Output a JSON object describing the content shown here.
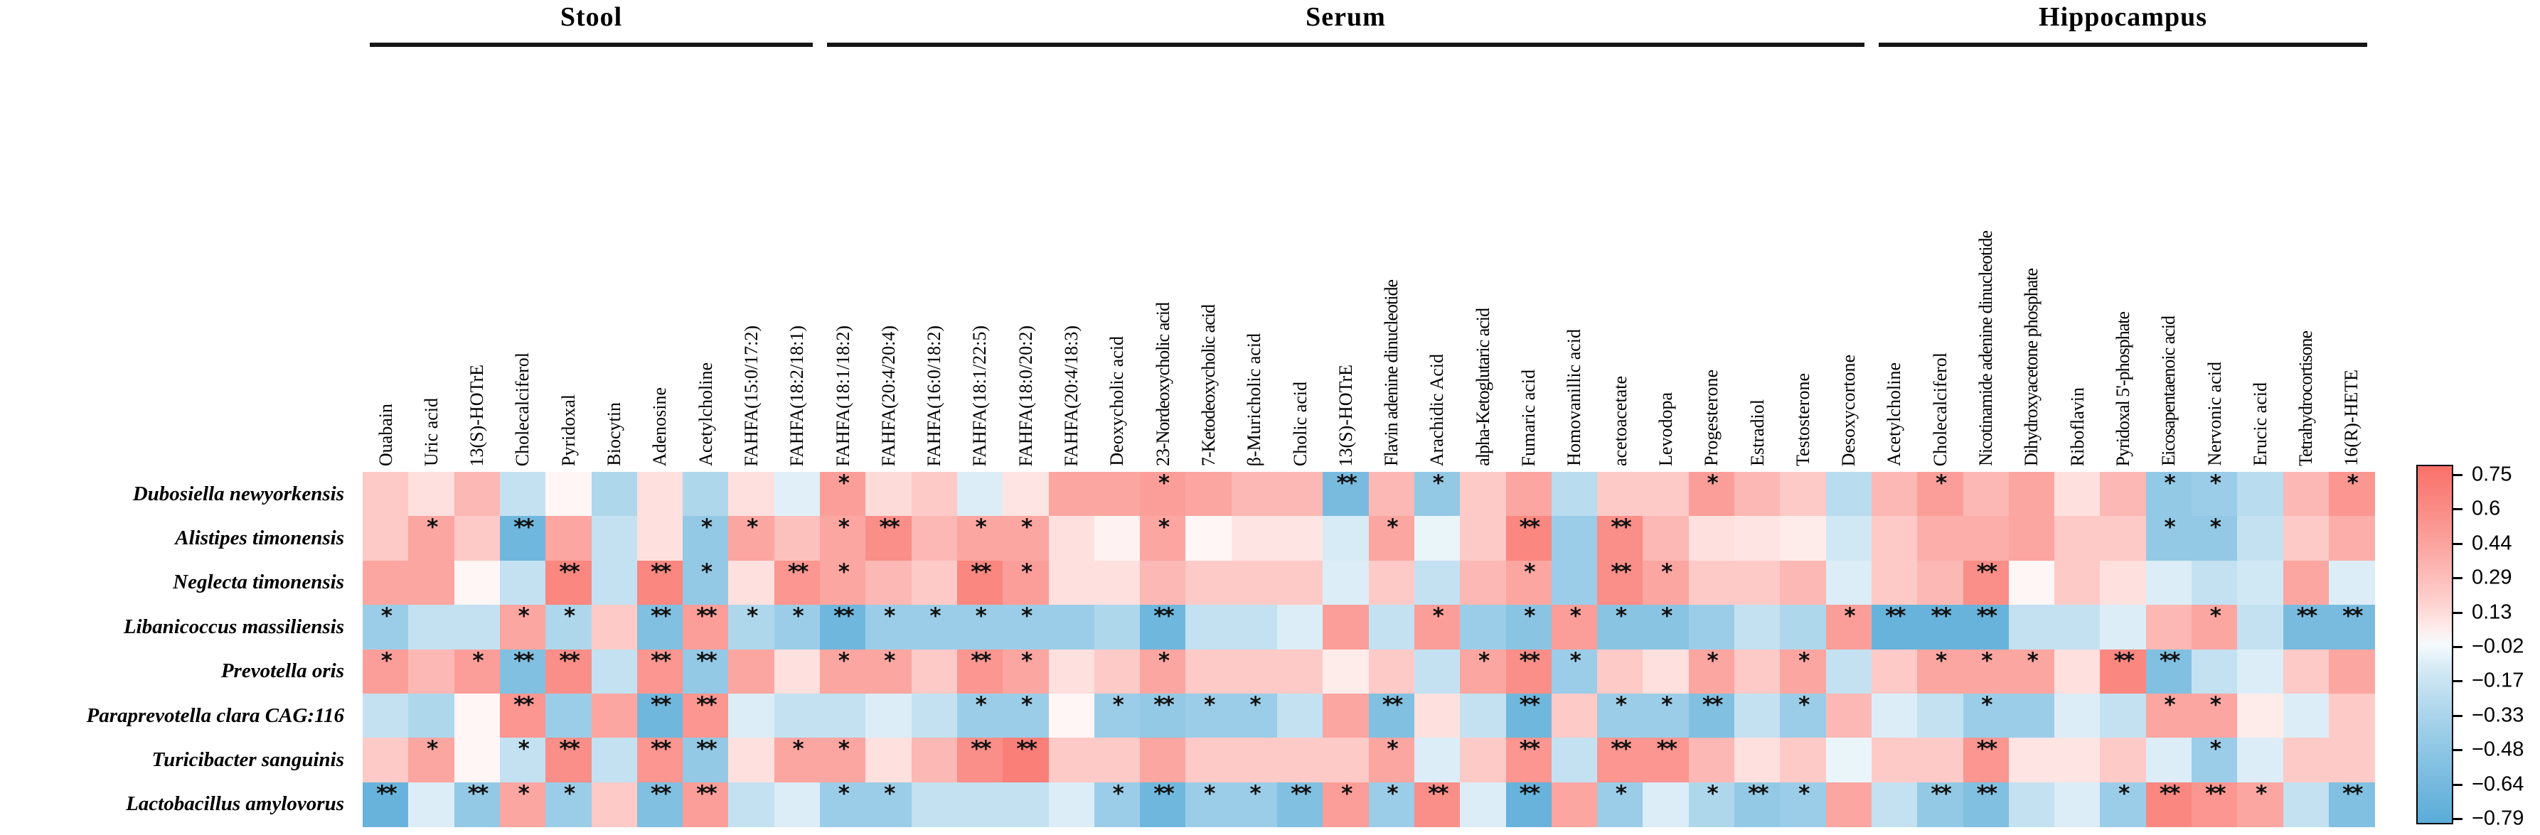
{
  "chart_data": {
    "type": "heatmap",
    "title": "",
    "column_groups": [
      {
        "label": "Stool",
        "start": 0,
        "count": 10
      },
      {
        "label": "Serum",
        "start": 10,
        "count": 23
      },
      {
        "label": "Hippocampus",
        "start": 33,
        "count": 11
      }
    ],
    "columns": [
      "Ouabain",
      "Uric acid",
      "13(S)-HOTrE",
      "Cholecalciferol",
      "Pyridoxal",
      "Biocytin",
      "Adenosine",
      "Acetylcholine",
      "FAHFA(15:0/17:2)",
      "FAHFA(18:2/18:1)",
      "FAHFA(18:1/18:2)",
      "FAHFA(20:4/20:4)",
      "FAHFA(16:0/18:2)",
      "FAHFA(18:1/22:5)",
      "FAHFA(18:0/20:2)",
      "FAHFA(20:4/18:3)",
      "Deoxycholic acid",
      "23-Nordeoxycholic acid",
      "7-Ketodeoxycholic acid",
      "β-Muricholic acid",
      "Cholic acid",
      "13(S)-HOTrE",
      "Flavin adenine dinucleotide",
      "Arachidic Acid",
      "alpha-Ketoglutaric acid",
      "Fumaric acid",
      "Homovanillic acid",
      "acetoacetate",
      "Levodopa",
      "Progesterone",
      "Estradiol",
      "Testosterone",
      "Desoxycortone",
      "Acetylcholine",
      "Cholecalciferol",
      "Nicotinamide adenine dinucleotide",
      "Dihydroxyacetone phosphate",
      "Riboflavin",
      "Pyridoxal 5'-phosphate",
      "Eicosapentaenoic acid",
      "Nervonic acid",
      "Erucic acid",
      "Tetrahydrocortisone",
      "16(R)-HETE"
    ],
    "rows": [
      "Dubosiella newyorkensis",
      "Alistipes timonensis",
      "Neglecta timonensis",
      "Libanicoccus massiliensis",
      "Prevotella oris",
      "Paraprevotella clara CAG:116",
      "Turicibacter sanguinis",
      "Lactobacillus amylovorus"
    ],
    "values": [
      [
        0.2,
        0.1,
        0.3,
        -0.2,
        0.02,
        -0.3,
        0.1,
        -0.3,
        0.1,
        -0.08,
        0.45,
        0.12,
        0.2,
        -0.1,
        0.08,
        0.4,
        0.4,
        0.45,
        0.4,
        0.3,
        0.3,
        -0.6,
        0.3,
        -0.45,
        0.2,
        0.4,
        -0.25,
        0.2,
        0.2,
        0.45,
        0.3,
        0.2,
        -0.25,
        0.3,
        0.45,
        0.3,
        0.4,
        0.1,
        0.3,
        -0.45,
        -0.4,
        -0.25,
        0.3,
        0.5
      ],
      [
        0.2,
        0.4,
        0.2,
        -0.65,
        0.4,
        -0.2,
        0.1,
        -0.45,
        0.4,
        0.25,
        0.4,
        0.55,
        0.3,
        0.4,
        0.4,
        0.1,
        0.03,
        0.4,
        0.02,
        0.08,
        0.08,
        -0.12,
        0.4,
        -0.05,
        0.2,
        0.6,
        -0.4,
        0.55,
        0.3,
        0.1,
        0.08,
        0.05,
        -0.15,
        0.2,
        0.35,
        0.35,
        0.4,
        0.2,
        0.2,
        -0.45,
        -0.45,
        -0.2,
        0.2,
        0.35
      ],
      [
        0.4,
        0.4,
        0.02,
        -0.2,
        0.6,
        -0.2,
        0.6,
        -0.45,
        0.1,
        0.5,
        0.4,
        0.3,
        0.2,
        0.6,
        0.45,
        0.1,
        0.1,
        0.3,
        0.2,
        0.2,
        0.2,
        -0.1,
        0.2,
        -0.2,
        0.3,
        0.4,
        -0.4,
        0.55,
        0.4,
        0.2,
        0.2,
        0.3,
        -0.1,
        0.2,
        0.3,
        0.55,
        0.02,
        0.2,
        0.1,
        -0.1,
        -0.2,
        -0.15,
        0.4,
        -0.1
      ],
      [
        -0.4,
        -0.2,
        -0.2,
        0.4,
        -0.3,
        0.2,
        -0.55,
        0.45,
        -0.3,
        -0.4,
        -0.65,
        -0.4,
        -0.4,
        -0.4,
        -0.4,
        -0.4,
        -0.3,
        -0.65,
        -0.2,
        -0.2,
        -0.1,
        0.45,
        -0.2,
        0.45,
        -0.4,
        -0.5,
        0.45,
        -0.5,
        -0.5,
        -0.4,
        -0.2,
        -0.3,
        0.45,
        -0.7,
        -0.7,
        -0.7,
        -0.2,
        -0.2,
        -0.1,
        0.3,
        0.4,
        -0.2,
        -0.6,
        -0.6
      ],
      [
        0.45,
        0.3,
        0.45,
        -0.55,
        0.55,
        -0.2,
        0.5,
        -0.45,
        0.4,
        0.1,
        0.4,
        0.4,
        0.2,
        0.5,
        0.4,
        0.1,
        0.2,
        0.4,
        0.2,
        0.2,
        0.2,
        0.05,
        0.2,
        -0.2,
        0.4,
        0.55,
        -0.4,
        0.2,
        0.1,
        0.4,
        0.2,
        0.4,
        -0.2,
        0.2,
        0.4,
        0.4,
        0.4,
        0.1,
        0.6,
        -0.55,
        -0.2,
        -0.1,
        0.2,
        0.4
      ],
      [
        -0.2,
        -0.3,
        0.02,
        0.5,
        -0.4,
        0.4,
        -0.65,
        0.5,
        -0.1,
        -0.2,
        -0.2,
        -0.1,
        -0.2,
        -0.4,
        -0.4,
        0.02,
        -0.4,
        -0.45,
        -0.4,
        -0.4,
        -0.2,
        0.4,
        -0.55,
        0.1,
        -0.2,
        -0.65,
        0.2,
        -0.4,
        -0.4,
        -0.55,
        -0.2,
        -0.4,
        0.3,
        -0.1,
        -0.2,
        -0.4,
        -0.4,
        -0.1,
        -0.2,
        0.4,
        0.4,
        0.05,
        -0.1,
        0.2
      ],
      [
        0.2,
        0.4,
        0.02,
        -0.2,
        0.55,
        -0.2,
        0.5,
        -0.45,
        0.1,
        0.4,
        0.4,
        0.1,
        0.3,
        0.55,
        0.65,
        0.2,
        0.2,
        0.4,
        0.2,
        0.2,
        0.2,
        0.2,
        0.4,
        -0.1,
        0.2,
        0.5,
        -0.2,
        0.5,
        0.5,
        0.3,
        0.1,
        0.2,
        -0.05,
        0.2,
        0.2,
        0.5,
        0.08,
        0.08,
        0.2,
        -0.1,
        -0.4,
        -0.1,
        0.2,
        0.2
      ],
      [
        -0.7,
        -0.1,
        -0.45,
        0.4,
        -0.4,
        0.2,
        -0.55,
        0.45,
        -0.2,
        -0.1,
        -0.4,
        -0.4,
        -0.2,
        -0.2,
        -0.2,
        -0.1,
        -0.4,
        -0.65,
        -0.4,
        -0.4,
        -0.55,
        0.45,
        -0.4,
        0.55,
        -0.1,
        -0.7,
        0.4,
        -0.4,
        -0.1,
        -0.3,
        -0.45,
        -0.4,
        0.4,
        -0.2,
        -0.45,
        -0.55,
        -0.2,
        -0.1,
        -0.4,
        0.6,
        0.5,
        0.4,
        -0.2,
        -0.55
      ]
    ],
    "significance": [
      [
        "",
        "",
        "",
        "",
        "",
        "",
        "",
        "",
        "",
        "",
        "*",
        "",
        "",
        "",
        "",
        "",
        "",
        "*",
        "",
        "",
        "",
        "**",
        "",
        "*",
        "",
        "",
        "",
        "",
        "",
        "*",
        "",
        "",
        "",
        "",
        "*",
        "",
        "",
        "",
        "",
        "*",
        "*",
        "",
        "",
        "*"
      ],
      [
        "",
        "*",
        "",
        "**",
        "",
        "",
        "",
        "*",
        "*",
        "",
        "*",
        "**",
        "",
        "*",
        "*",
        "",
        "",
        "*",
        "",
        "",
        "",
        "",
        "*",
        "",
        "",
        "**",
        "",
        "**",
        "",
        "",
        "",
        "",
        "",
        "",
        "",
        "",
        "",
        "",
        "",
        "*",
        "*",
        "",
        "",
        ""
      ],
      [
        "",
        "",
        "",
        "",
        "**",
        "",
        "**",
        "*",
        "",
        "**",
        "*",
        "",
        "",
        "**",
        "*",
        "",
        "",
        "",
        "",
        "",
        "",
        "",
        "",
        "",
        "",
        "*",
        "",
        "**",
        "*",
        "",
        "",
        "",
        "",
        "",
        "",
        "**",
        "",
        "",
        "",
        "",
        "",
        "",
        "",
        ""
      ],
      [
        "*",
        "",
        "",
        "*",
        "*",
        "",
        "**",
        "**",
        "*",
        "*",
        "**",
        "*",
        "*",
        "*",
        "*",
        "",
        "",
        "**",
        "",
        "",
        "",
        "",
        "",
        "*",
        "",
        "*",
        "*",
        "*",
        "*",
        "",
        "",
        "",
        "*",
        "**",
        "**",
        "**",
        "",
        "",
        "",
        "",
        "*",
        "",
        "**",
        "**"
      ],
      [
        "*",
        "",
        "*",
        "**",
        "**",
        "",
        "**",
        "**",
        "",
        "",
        "*",
        "*",
        "",
        "**",
        "*",
        "",
        "",
        "*",
        "",
        "",
        "",
        "",
        "",
        "",
        "*",
        "**",
        "*",
        "",
        "",
        "*",
        "",
        "*",
        "",
        "",
        "*",
        "*",
        "*",
        "",
        "**",
        "**",
        "",
        "",
        "",
        ""
      ],
      [
        "",
        "",
        "",
        "**",
        "",
        "",
        "**",
        "**",
        "",
        "",
        "",
        "",
        "",
        "*",
        "*",
        "",
        "*",
        "**",
        "*",
        "*",
        "",
        "",
        "**",
        "",
        "",
        "**",
        "",
        "*",
        "*",
        "**",
        "",
        "*",
        "",
        "",
        "",
        "*",
        "",
        "",
        "",
        "*",
        "*",
        "",
        "",
        ""
      ],
      [
        "",
        "*",
        "",
        "*",
        "**",
        "",
        "**",
        "**",
        "",
        "*",
        "*",
        "",
        "",
        "**",
        "**",
        "",
        "",
        "",
        "",
        "",
        "",
        "",
        "*",
        "",
        "",
        "**",
        "",
        "**",
        "**",
        "",
        "",
        "",
        "",
        "",
        "",
        "**",
        "",
        "",
        "",
        "",
        "*",
        "",
        "",
        ""
      ],
      [
        "**",
        "",
        "**",
        "*",
        "*",
        "",
        "**",
        "**",
        "",
        "",
        "*",
        "*",
        "",
        "",
        "",
        "",
        "*",
        "**",
        "*",
        "*",
        "**",
        "*",
        "*",
        "**",
        "",
        "**",
        "",
        "*",
        "",
        "*",
        "**",
        "*",
        "",
        "",
        "**",
        "**",
        "",
        "",
        "*",
        "**",
        "**",
        "*",
        "",
        "**"
      ]
    ],
    "color_scale": {
      "domain_min": -0.79,
      "domain_max": 0.75,
      "ticks": [
        0.75,
        0.6,
        0.44,
        0.29,
        0.13,
        -0.02,
        -0.17,
        -0.33,
        -0.48,
        -0.64,
        -0.79
      ],
      "tick_labels": [
        "0.75",
        "0.6",
        "0.44",
        "0.29",
        "0.13",
        "−0.02",
        "−0.17",
        "−0.33",
        "−0.48",
        "−0.64",
        "−0.79"
      ],
      "red_max": "#f97169",
      "white_mid": "#ffffff",
      "blue_min": "#5aacd8",
      "legend_position": "right"
    },
    "grid": "off",
    "significance_legend": {
      "one_star": "*",
      "two_star": "**"
    }
  }
}
